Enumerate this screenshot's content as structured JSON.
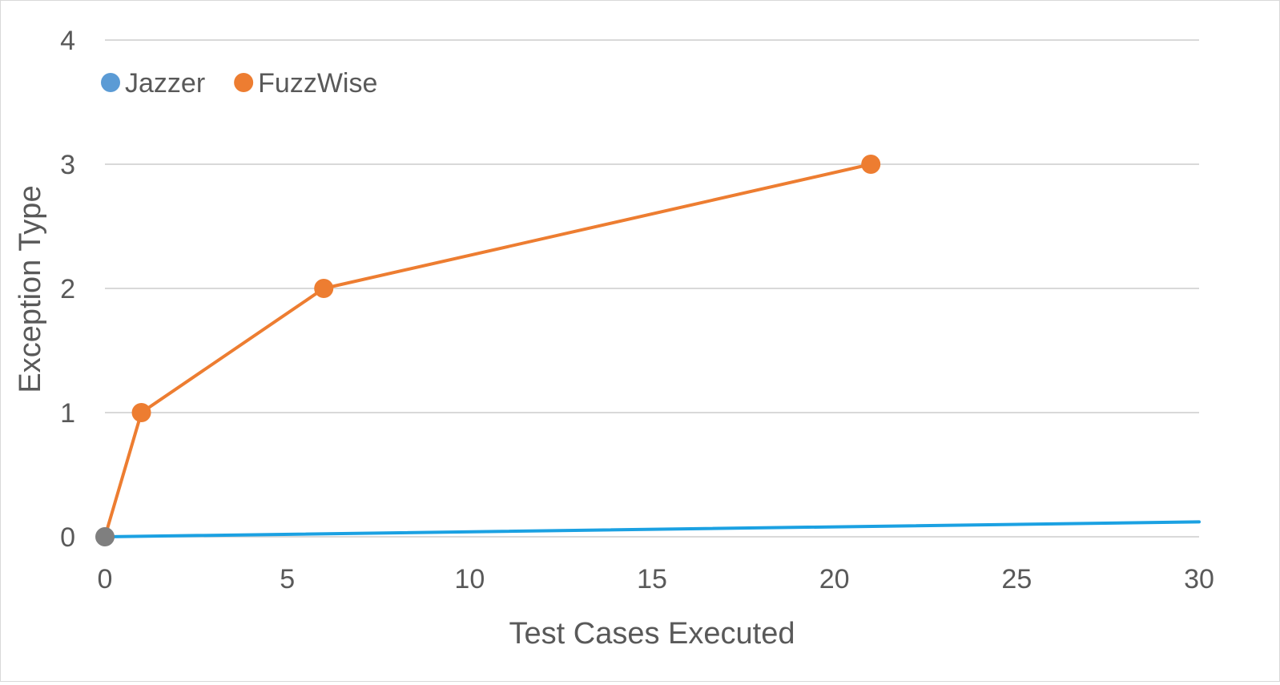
{
  "chart_data": {
    "type": "line",
    "title": "",
    "xlabel": "Test Cases Executed",
    "ylabel": "Exception Type",
    "xlim": [
      0,
      30
    ],
    "ylim": [
      0,
      4
    ],
    "x_ticks": [
      0,
      5,
      10,
      15,
      20,
      25,
      30
    ],
    "y_ticks": [
      0,
      1,
      2,
      3,
      4
    ],
    "grid": "horizontal",
    "legend_position": "top-left",
    "series": [
      {
        "name": "Jazzer",
        "color": "#1ba1e2",
        "marker_color": "#5b9bd5",
        "markers": false,
        "x": [
          0,
          30
        ],
        "y": [
          0,
          0.12
        ]
      },
      {
        "name": "FuzzWise",
        "color": "#ed7d31",
        "marker_color": "#ed7d31",
        "markers": true,
        "x": [
          0,
          1,
          6,
          21
        ],
        "y": [
          0,
          1,
          2,
          3
        ]
      }
    ],
    "origin_marker_color": "#7f7f7f"
  }
}
